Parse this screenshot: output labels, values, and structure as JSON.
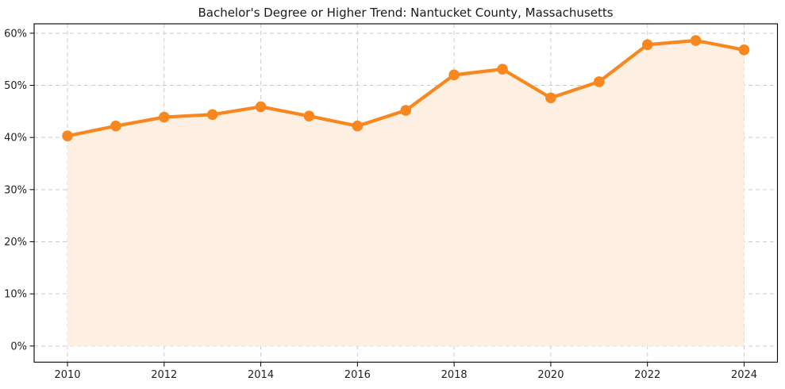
{
  "title": "Bachelor's Degree or Higher Trend: Nantucket County, Massachusetts",
  "colors": {
    "line": "#F7871E",
    "marker": "#F7871E",
    "area_fill": "#FDF0E3",
    "grid": "#CCCCCC",
    "spine": "#000000",
    "text": "#1A1A1A",
    "background": "#FFFFFF"
  },
  "chart_data": {
    "type": "line",
    "title": "Bachelor's Degree or Higher Trend: Nantucket County, Massachusetts",
    "xlabel": "",
    "ylabel": "",
    "x": [
      2010,
      2011,
      2012,
      2013,
      2014,
      2015,
      2016,
      2017,
      2018,
      2019,
      2020,
      2021,
      2022,
      2023,
      2024
    ],
    "values": [
      40.3,
      42.2,
      43.9,
      44.4,
      45.9,
      44.1,
      42.2,
      45.2,
      52.0,
      53.1,
      47.6,
      50.7,
      57.8,
      58.6,
      56.8
    ],
    "units": "%",
    "marker": "circle",
    "area_fill": true,
    "area_baseline": 0,
    "grid": true,
    "grid_style": "dashed",
    "legend": false,
    "xlim": [
      2009.31,
      2024.69
    ],
    "ylim": [
      -3.1,
      61.8
    ],
    "x_ticks": {
      "values": [
        2010,
        2012,
        2014,
        2016,
        2018,
        2020,
        2022,
        2024
      ],
      "labels": [
        "2010",
        "2012",
        "2014",
        "2016",
        "2018",
        "2020",
        "2022",
        "2024"
      ]
    },
    "y_ticks": {
      "values": [
        0,
        10,
        20,
        30,
        40,
        50,
        60
      ],
      "labels": [
        "0%",
        "10%",
        "20%",
        "30%",
        "40%",
        "50%",
        "60%"
      ]
    }
  }
}
